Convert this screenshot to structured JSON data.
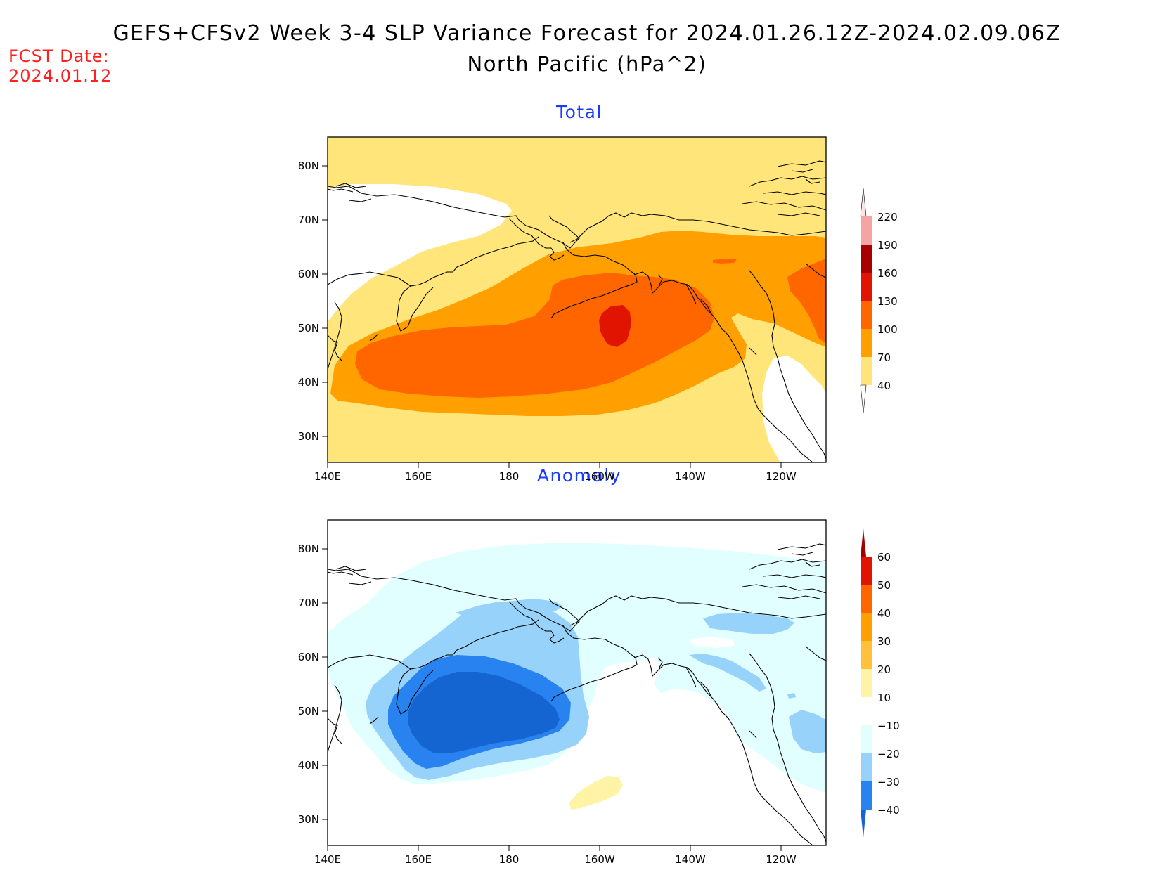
{
  "header": {
    "title_line1": "GEFS+CFSv2 Week 3-4 SLP Variance Forecast for 2024.01.26.12Z-2024.02.09.06Z",
    "title_line2": "North Pacific (hPa^2)",
    "fcst_label": "FCST Date:",
    "fcst_date": "2024.01.12"
  },
  "axes": {
    "lon_labels": [
      "140E",
      "160E",
      "180",
      "160W",
      "140W",
      "120W"
    ],
    "lat_labels": [
      "80N",
      "70N",
      "60N",
      "50N",
      "40N",
      "30N"
    ]
  },
  "panels": [
    {
      "title": "Total",
      "colorbar": {
        "levels": [
          "220",
          "190",
          "160",
          "130",
          "100",
          "70",
          "40"
        ],
        "colors": [
          "#fde4e4",
          "#f4a4a4",
          "#a80000",
          "#e01400",
          "#ff6600",
          "#ffa000",
          "#ffe57a"
        ]
      },
      "fill_colors": {
        "c40": "#ffe57a",
        "c70": "#ffa000",
        "c100": "#ff6600",
        "c130": "#e01400",
        "c160": "#a80000"
      }
    },
    {
      "title": "Anomaly",
      "colorbar": {
        "levels": [
          "60",
          "50",
          "40",
          "30",
          "20",
          "10",
          "−10",
          "−20",
          "−30",
          "−40"
        ],
        "colors": [
          "#a50000",
          "#e01400",
          "#ff6600",
          "#ffa000",
          "#ffc03c",
          "#fff3a6",
          "#ffffff",
          "#e0fffe",
          "#96d2fa",
          "#2882f0",
          "#1464d2"
        ]
      },
      "fill_colors": {
        "n10": "#e0fffe",
        "n20": "#96d2fa",
        "n30": "#2882f0",
        "n40": "#1464d2",
        "p10": "#fff3a6"
      }
    }
  ]
}
